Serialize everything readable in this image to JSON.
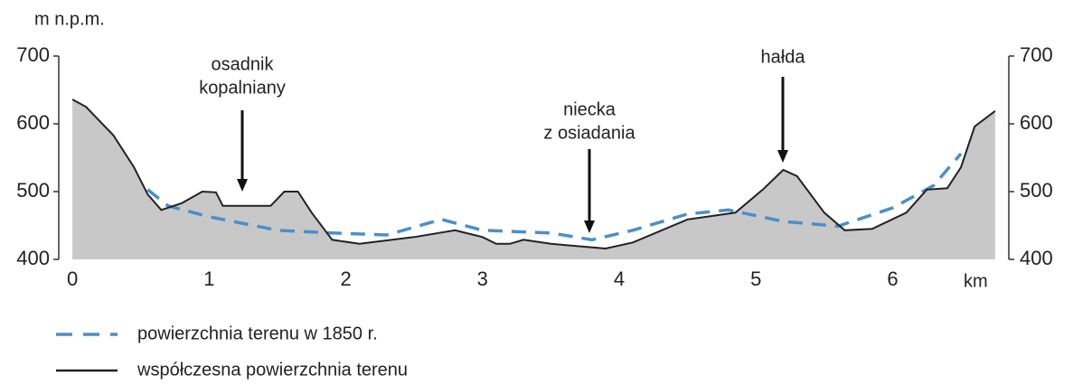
{
  "chart_data": {
    "type": "line",
    "y_label": "m  n.p.m.",
    "x_label": "km",
    "xlim": [
      -0.1,
      6.85
    ],
    "xticks": [
      0,
      1,
      2,
      3,
      4,
      5,
      6
    ],
    "ylim": [
      400,
      700
    ],
    "yticks": [
      400,
      500,
      600,
      700
    ],
    "series": [
      {
        "name": "powierzchnia terenu w 1850 r.",
        "color": "#4a8fcc",
        "style": "dashed",
        "x": [
          0.55,
          0.7,
          1.0,
          1.5,
          1.9,
          2.3,
          2.7,
          3.0,
          3.5,
          3.8,
          4.1,
          4.5,
          4.8,
          5.2,
          5.6,
          6.0,
          6.3,
          6.5
        ],
        "values": [
          503,
          479,
          463,
          443,
          439,
          436,
          459,
          443,
          439,
          429,
          443,
          467,
          473,
          456,
          449,
          476,
          509,
          556
        ]
      },
      {
        "name": "współczesna powierzchnia terenu",
        "color": "#222222",
        "style": "solid",
        "fill": "#c8c8c8",
        "x": [
          0,
          0.1,
          0.3,
          0.45,
          0.55,
          0.65,
          0.8,
          0.95,
          1.05,
          1.1,
          1.45,
          1.55,
          1.65,
          1.75,
          1.9,
          2.1,
          2.5,
          2.8,
          3.0,
          3.1,
          3.2,
          3.3,
          3.5,
          3.9,
          4.1,
          4.5,
          4.85,
          5.05,
          5.2,
          5.3,
          5.5,
          5.65,
          5.85,
          6.1,
          6.25,
          6.4,
          6.5,
          6.6,
          6.75
        ],
        "values": [
          636,
          625,
          583,
          536,
          496,
          473,
          483,
          500,
          499,
          479,
          479,
          500,
          500,
          469,
          429,
          423,
          433,
          443,
          433,
          423,
          423,
          429,
          423,
          416,
          425,
          459,
          469,
          503,
          532,
          523,
          469,
          443,
          445,
          469,
          503,
          505,
          536,
          596,
          619
        ]
      }
    ],
    "annotations": [
      {
        "lines": [
          "osadnik",
          "kopalniany"
        ]
      },
      {
        "lines": [
          "niecka",
          "z osiadania"
        ]
      },
      {
        "lines": [
          "hałda"
        ]
      }
    ]
  }
}
